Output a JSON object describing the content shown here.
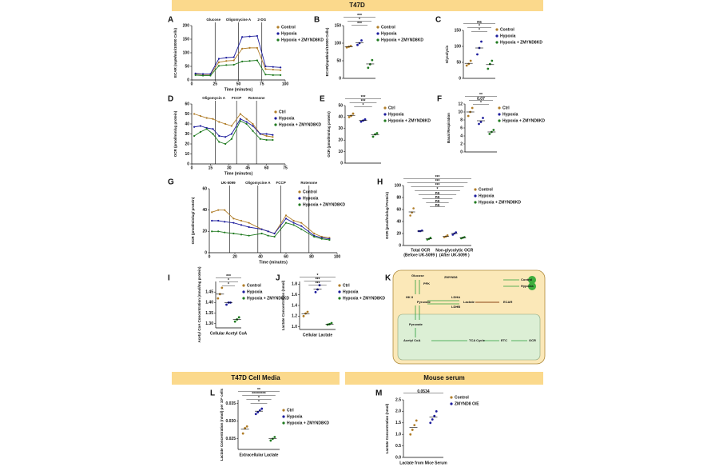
{
  "headers": [
    "T47D",
    "T47D Cell Media",
    "Mouse serum"
  ],
  "diagram": {
    "panel": "K",
    "labels": [
      "Glucose",
      "HK II",
      "PFK",
      "ZMYND8",
      "LDHA",
      "Pyruvate",
      "Lactate",
      "ECAR",
      "LDHB",
      "Pyruvate",
      "Acetyl CoA",
      "TCA Cycle",
      "ETC",
      "OCR",
      "Control",
      "Hypoxia"
    ]
  },
  "chart_data": [
    {
      "type": "line",
      "panel": "A",
      "ylabel": "ECAR (mpH/min/10000 Cells)",
      "xlabel": "Time (minutes)",
      "x": [
        4,
        12,
        20,
        29,
        37,
        45,
        54,
        62,
        70,
        79,
        87,
        95
      ],
      "xlim": [
        0,
        100
      ],
      "xticks": [
        0,
        25,
        50,
        75,
        100
      ],
      "ylim": [
        0,
        200
      ],
      "yticks": [
        0,
        50,
        100,
        150,
        200
      ],
      "markers": [
        {
          "label": "Glucose",
          "x": 25
        },
        {
          "label": "Oligomycine A",
          "x": 50
        },
        {
          "label": "2-DG",
          "x": 75
        }
      ],
      "series": [
        {
          "name": "Control",
          "color": "#b07d28",
          "values": [
            22,
            20,
            20,
            65,
            70,
            72,
            115,
            118,
            118,
            40,
            38,
            36
          ]
        },
        {
          "name": "Hypoxia",
          "color": "#1c1c9c",
          "values": [
            24,
            22,
            22,
            78,
            82,
            84,
            158,
            160,
            162,
            50,
            48,
            46
          ]
        },
        {
          "name": "Hypoxia + ZMYND8KD",
          "color": "#1f7a1f",
          "values": [
            18,
            16,
            16,
            52,
            55,
            56,
            68,
            70,
            72,
            20,
            18,
            18
          ]
        }
      ]
    },
    {
      "type": "dot",
      "panel": "B",
      "ylabel": "ECAR(mpH/min/10000 Cells)",
      "ylim": [
        0,
        150
      ],
      "yticks": [
        0,
        50,
        100,
        150
      ],
      "annotations": [
        "***",
        "*",
        "***"
      ],
      "series": [
        {
          "name": "Control",
          "color": "#b07d28",
          "values": [
            88,
            90,
            92
          ],
          "mean": 90
        },
        {
          "name": "Hypoxia",
          "color": "#1c1c9c",
          "values": [
            95,
            100,
            108
          ],
          "mean": 101
        },
        {
          "name": "Hypoxia + ZMYND8KD",
          "color": "#1f7a1f",
          "values": [
            30,
            40,
            52
          ],
          "mean": 41
        }
      ]
    },
    {
      "type": "dot",
      "panel": "C",
      "ylabel": "Glycolysis",
      "ylim": [
        0,
        150
      ],
      "yticks": [
        0,
        50,
        100,
        150
      ],
      "annotations": [
        "ns",
        "*",
        "*"
      ],
      "series": [
        {
          "name": "Control",
          "color": "#b07d28",
          "values": [
            40,
            45,
            55
          ],
          "mean": 47
        },
        {
          "name": "Hypoxia",
          "color": "#1c1c9c",
          "values": [
            75,
            95,
            115
          ],
          "mean": 95
        },
        {
          "name": "Hypoxia + ZMYND8KD",
          "color": "#1f7a1f",
          "values": [
            30,
            45,
            55
          ],
          "mean": 43
        }
      ]
    },
    {
      "type": "line",
      "panel": "D",
      "ylabel": "OCR (pmol/min/ug protein)",
      "xlabel": "Time (minutes)",
      "x": [
        2,
        7,
        12,
        17,
        22,
        27,
        32,
        39,
        44,
        49,
        55,
        60,
        65
      ],
      "xlim": [
        0,
        75
      ],
      "xticks": [
        0,
        15,
        30,
        45,
        60,
        75
      ],
      "ylim": [
        0,
        60
      ],
      "yticks": [
        0,
        10,
        20,
        30,
        40,
        50,
        60
      ],
      "markers": [
        {
          "label": "Oligomycin A",
          "x": 19
        },
        {
          "label": "FCCP",
          "x": 36
        },
        {
          "label": "Rotenone",
          "x": 52
        }
      ],
      "series": [
        {
          "name": "Ctrl",
          "color": "#b07d28",
          "values": [
            50,
            48,
            46,
            45,
            42,
            40,
            38,
            50,
            45,
            40,
            30,
            28,
            27
          ]
        },
        {
          "name": "Hypoxia",
          "color": "#1c1c9c",
          "values": [
            37,
            38,
            36,
            35,
            28,
            27,
            30,
            45,
            42,
            38,
            30,
            30,
            29
          ]
        },
        {
          "name": "Hypoxia + ZMYND8KD",
          "color": "#1f7a1f",
          "values": [
            28,
            32,
            35,
            30,
            22,
            20,
            25,
            43,
            40,
            33,
            25,
            24,
            24
          ]
        }
      ]
    },
    {
      "type": "dot",
      "panel": "E",
      "ylabel": "OCR (pmol/min/ug protein)",
      "ylim": [
        0,
        50
      ],
      "yticks": [
        0,
        10,
        20,
        30,
        40,
        50
      ],
      "annotations": [
        "***",
        "***",
        "*"
      ],
      "series": [
        {
          "name": "Ctrl",
          "color": "#b07d28",
          "values": [
            40,
            41,
            43
          ],
          "mean": 41.5
        },
        {
          "name": "Hypoxia",
          "color": "#1c1c9c",
          "values": [
            36,
            37,
            38
          ],
          "mean": 37
        },
        {
          "name": "Hypoxia + ZMYND8KD",
          "color": "#1f7a1f",
          "values": [
            23,
            25,
            26
          ],
          "mean": 24.5
        }
      ]
    },
    {
      "type": "dot",
      "panel": "F",
      "ylabel": "Basal Respiration",
      "ylim": [
        0,
        12
      ],
      "yticks": [
        0,
        2,
        4,
        6,
        8,
        10,
        12
      ],
      "annotations": [
        "**",
        "0.07",
        "*"
      ],
      "series": [
        {
          "name": "Ctrl",
          "color": "#b07d28",
          "values": [
            9,
            10,
            11
          ],
          "mean": 10
        },
        {
          "name": "Hypoxia",
          "color": "#1c1c9c",
          "values": [
            7,
            7.5,
            8.5
          ],
          "mean": 7.8
        },
        {
          "name": "Hypoxia + ZMYND8KD",
          "color": "#1f7a1f",
          "values": [
            4.5,
            5,
            5.5
          ],
          "mean": 5
        }
      ]
    },
    {
      "type": "line",
      "panel": "G",
      "ylabel": "OCR (pmol/min/ug/ protein)",
      "xlabel": "Time (minutes)",
      "x": [
        2,
        7,
        12,
        19,
        25,
        31,
        41,
        46,
        51,
        60,
        66,
        72,
        82,
        88,
        94
      ],
      "xlim": [
        0,
        100
      ],
      "xticks": [
        0,
        20,
        40,
        60,
        80,
        100
      ],
      "ylim": [
        0,
        60
      ],
      "yticks": [
        0,
        20,
        40,
        60
      ],
      "markers": [
        {
          "label": "UK-5099",
          "x": 16
        },
        {
          "label": "Oligomycine A",
          "x": 38
        },
        {
          "label": "FCCP",
          "x": 56
        },
        {
          "label": "Rotenone",
          "x": 78
        }
      ],
      "series": [
        {
          "name": "Control",
          "color": "#b07d28",
          "values": [
            38,
            40,
            40,
            32,
            30,
            28,
            22,
            20,
            18,
            35,
            30,
            28,
            18,
            15,
            14
          ]
        },
        {
          "name": "Hypoxia",
          "color": "#1c1c9c",
          "values": [
            30,
            30,
            29,
            28,
            26,
            24,
            22,
            20,
            18,
            32,
            28,
            25,
            16,
            14,
            13
          ]
        },
        {
          "name": "Hypoxia + ZMYND8KD",
          "color": "#1f7a1f",
          "values": [
            20,
            20,
            19,
            18,
            17,
            16,
            18,
            16,
            15,
            28,
            26,
            22,
            15,
            13,
            12
          ]
        }
      ]
    },
    {
      "type": "groupdot",
      "panel": "H",
      "ylabel": "OCR (pmol/min/ug/ Protein)",
      "categories": [
        "Total OCR",
        "Non-glycolytic OCR"
      ],
      "category_notes": [
        "(Before UK-5099 )",
        "(After UK-5099 )"
      ],
      "ylim": [
        0,
        100
      ],
      "yticks": [
        0,
        20,
        40,
        60,
        80,
        100
      ],
      "annotations": [
        "***",
        "***",
        "***",
        "*",
        "ns",
        "ns",
        "ns",
        "ns"
      ],
      "series": [
        {
          "name": "Control",
          "color": "#b07d28",
          "values": [
            [
              50,
              55,
              62
            ],
            [
              14,
              15,
              17
            ]
          ],
          "means": [
            56,
            15
          ]
        },
        {
          "name": "Hypoxia",
          "color": "#1c1c9c",
          "values": [
            [
              24,
              24,
              25
            ],
            [
              18,
              20,
              22
            ]
          ],
          "means": [
            24,
            20
          ]
        },
        {
          "name": "Hypoxia + ZMYND8KD",
          "color": "#1f7a1f",
          "values": [
            [
              10,
              11,
              13
            ],
            [
              12,
              13,
              14
            ]
          ],
          "means": [
            11,
            13
          ]
        }
      ]
    },
    {
      "type": "dot",
      "panel": "I",
      "ylabel": "Acetyl CoA Concentration (nmol/mg protein)",
      "xlabel": "Cellular Acetyl CoA",
      "ylim": [
        1.28,
        1.5
      ],
      "yticks": [
        {
          "value": 1.3,
          "label": "1.30"
        },
        1.35,
        {
          "value": 1.4,
          "label": "1.40"
        },
        1.45
      ],
      "annotations": [
        "***",
        "*",
        "*"
      ],
      "series": [
        {
          "name": "Control",
          "color": "#b07d28",
          "values": [
            1.42,
            1.44,
            1.47
          ],
          "mean": 1.44
        },
        {
          "name": "Hypoxia",
          "color": "#1c1c9c",
          "values": [
            1.39,
            1.4,
            1.4
          ],
          "mean": 1.4
        },
        {
          "name": "Hypoxia + ZMYND8KD",
          "color": "#1f7a1f",
          "values": [
            1.31,
            1.32,
            1.33
          ],
          "mean": 1.32
        }
      ]
    },
    {
      "type": "dot",
      "panel": "J",
      "ylabel": "Lactate Concentration (nmol)",
      "xlabel": "Cellular Lactate",
      "ylim": [
        0.95,
        1.85
      ],
      "yticks": [
        {
          "value": 1,
          "label": "1.0"
        },
        1.2,
        1.4,
        1.6,
        1.8
      ],
      "annotations": [
        "*",
        "***",
        "***"
      ],
      "series": [
        {
          "name": "Ctrl",
          "color": "#b07d28",
          "values": [
            1.2,
            1.25,
            1.28
          ],
          "mean": 1.24
        },
        {
          "name": "Hypoxia",
          "color": "#1c1c9c",
          "values": [
            1.65,
            1.7,
            1.78
          ],
          "mean": 1.71
        },
        {
          "name": "Hypoxia + ZMYND8KD",
          "color": "#1f7a1f",
          "values": [
            1.04,
            1.05,
            1.07
          ],
          "mean": 1.05
        }
      ]
    },
    {
      "type": "dot",
      "panel": "L",
      "ylabel": "Lactate Concentration (nmol) per 10⁶ cells",
      "xlabel": "Extracellular Lactate",
      "ylim": [
        0.022,
        0.036
      ],
      "yticks": [
        0.025,
        {
          "value": 0.03,
          "label": "0.030"
        },
        0.035
      ],
      "annotations": [
        "**",
        "*********",
        "*",
        "*"
      ],
      "series": [
        {
          "name": "Ctrl",
          "color": "#b07d28",
          "values": [
            0.0265,
            0.028,
            0.0285
          ],
          "mean": 0.0277
        },
        {
          "name": "Hypoxia",
          "color": "#1c1c9c",
          "values": [
            0.032,
            0.0325,
            0.033,
            0.0335
          ],
          "mean": 0.0328
        },
        {
          "name": "Hypoxia + ZMYND8KD",
          "color": "#1f7a1f",
          "values": [
            0.0245,
            0.025,
            0.0255
          ],
          "mean": 0.025
        }
      ]
    },
    {
      "type": "dot",
      "panel": "M",
      "ylabel": "Lactate Concentration (nmol)",
      "xlabel": "Lactate from Mice Serum",
      "ylim": [
        0,
        2.5
      ],
      "yticks": [
        {
          "value": 0,
          "label": "0.0"
        },
        {
          "value": 0.5,
          "label": "0.5"
        },
        {
          "value": 1,
          "label": "1.0"
        },
        {
          "value": 1.5,
          "label": "1.5"
        },
        {
          "value": 2,
          "label": "2.0"
        },
        {
          "value": 2.5,
          "label": "2.5"
        }
      ],
      "annotations": [
        "0.0534"
      ],
      "series": [
        {
          "name": "Control",
          "color": "#b07d28",
          "values": [
            1,
            1.2,
            1.4,
            1.6
          ],
          "mean": 1.3
        },
        {
          "name": "ZMYND8 O/E",
          "color": "#1c1c9c",
          "values": [
            1.5,
            1.65,
            1.8,
            2
          ],
          "mean": 1.75
        }
      ]
    }
  ]
}
